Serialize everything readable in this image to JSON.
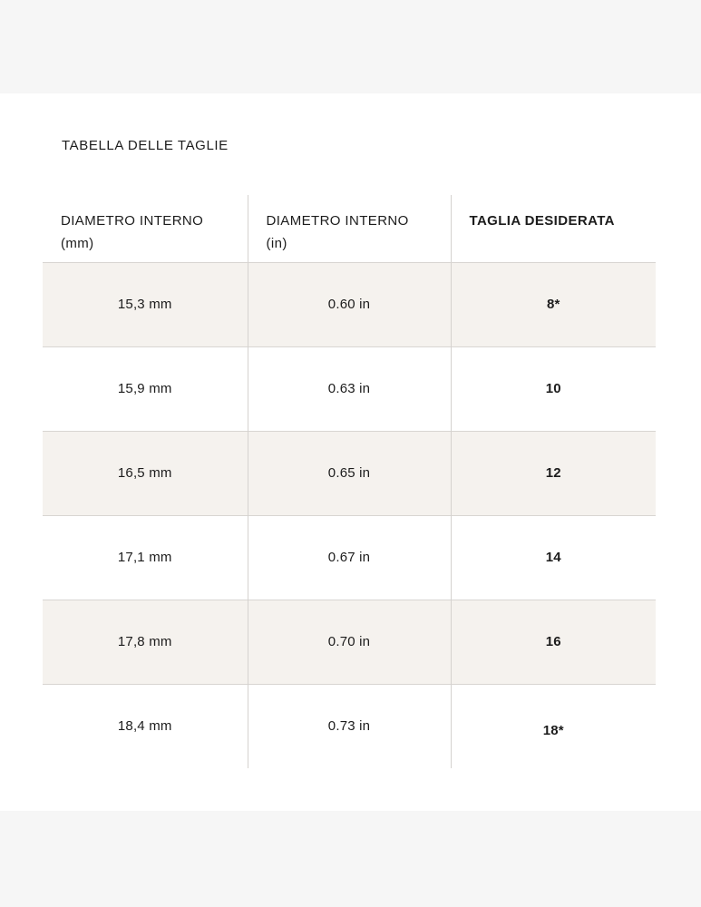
{
  "page": {
    "title": "TABELLA DELLE TAGLIE"
  },
  "table": {
    "headers": [
      {
        "line1": "DIAMETRO INTERNO",
        "line2": "(mm)"
      },
      {
        "line1": "DIAMETRO INTERNO",
        "line2": "(in)"
      },
      {
        "line1": "TAGLIA DESIDERATA",
        "line2": ""
      }
    ],
    "rows": [
      {
        "mm": "15,3 mm",
        "in": "0.60 in",
        "size": "8*"
      },
      {
        "mm": "15,9 mm",
        "in": "0.63 in",
        "size": "10"
      },
      {
        "mm": "16,5 mm",
        "in": "0.65 in",
        "size": "12"
      },
      {
        "mm": "17,1 mm",
        "in": "0.67 in",
        "size": "14"
      },
      {
        "mm": "17,8 mm",
        "in": "0.70 in",
        "size": "16"
      },
      {
        "mm": "18,4 mm",
        "in": "0.73 in",
        "size": "18*"
      }
    ]
  },
  "colors": {
    "page_background": "#ffffff",
    "band_background": "#f6f6f6",
    "row_alternate_background": "#f5f2ee",
    "border": "#d8d5d2",
    "text": "#1c1c1c"
  }
}
